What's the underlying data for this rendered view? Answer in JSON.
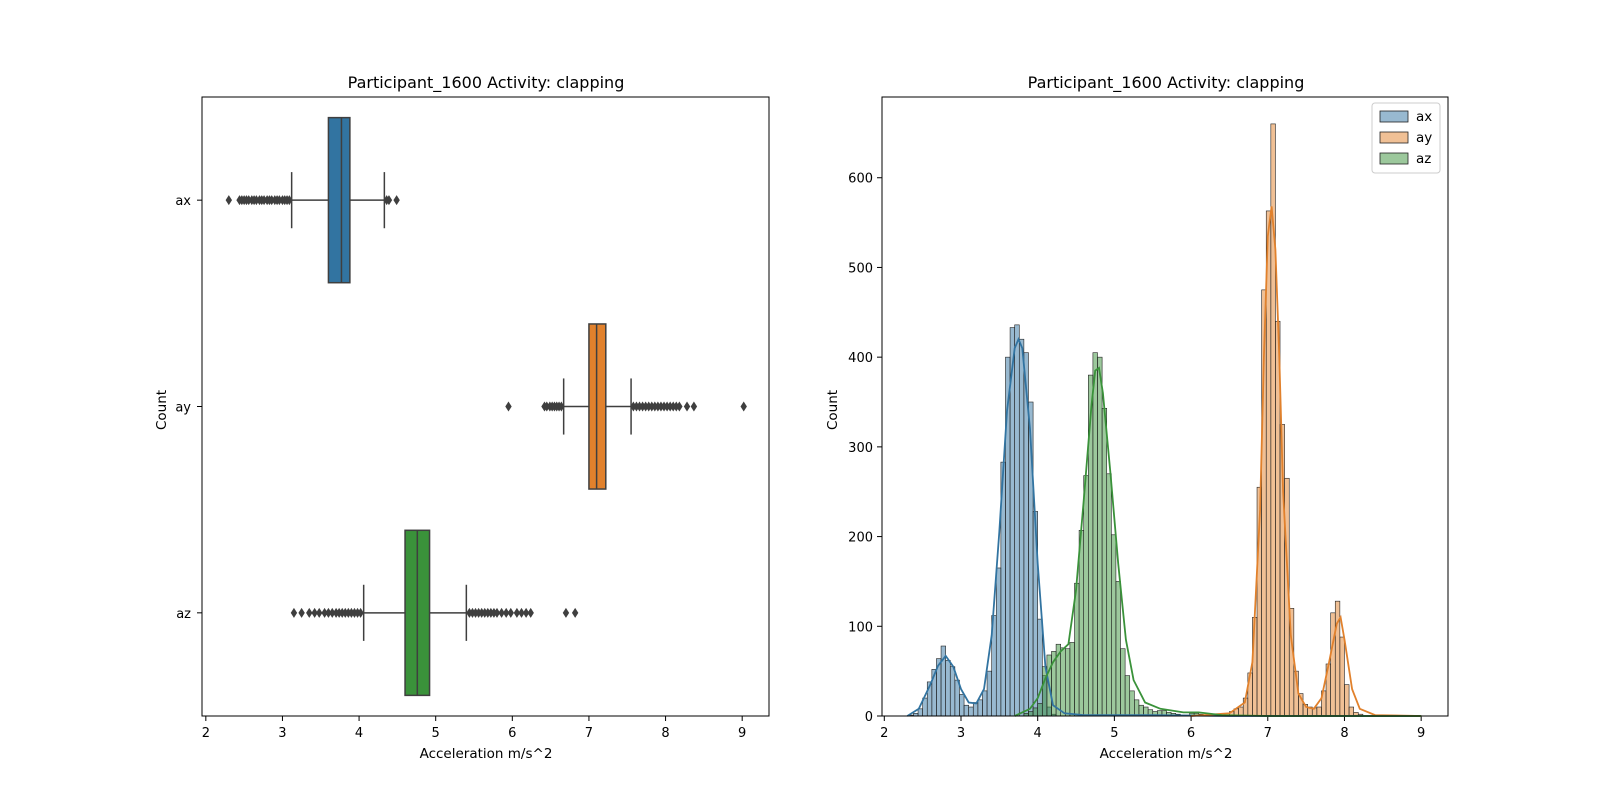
{
  "chart_data": [
    {
      "type": "boxplot",
      "title": "Participant_1600  Activity: clapping",
      "xlabel": "Acceleration m/s^2",
      "ylabel": "Count",
      "xlim": [
        1.95,
        9.35
      ],
      "xticks": [
        "2",
        "3",
        "4",
        "5",
        "6",
        "7",
        "8",
        "9"
      ],
      "categories": [
        "ax",
        "ay",
        "az"
      ],
      "colors": [
        "#3274a1",
        "#e1812c",
        "#3a923a"
      ],
      "boxes": [
        {
          "name": "ax",
          "q1": 3.6,
          "median": 3.77,
          "q3": 3.88,
          "whisker_low": 3.12,
          "whisker_high": 4.33,
          "fliers": [
            2.3,
            2.44,
            2.47,
            2.5,
            2.53,
            2.56,
            2.6,
            2.63,
            2.66,
            2.7,
            2.73,
            2.76,
            2.8,
            2.83,
            2.86,
            2.9,
            2.93,
            2.96,
            3.0,
            3.03,
            3.06,
            3.09,
            4.36,
            4.39,
            4.49
          ]
        },
        {
          "name": "ay",
          "q1": 7.0,
          "median": 7.1,
          "q3": 7.22,
          "whisker_low": 6.67,
          "whisker_high": 7.55,
          "fliers": [
            5.95,
            6.42,
            6.45,
            6.49,
            6.52,
            6.55,
            6.58,
            6.61,
            6.64,
            7.58,
            7.62,
            7.66,
            7.7,
            7.74,
            7.78,
            7.82,
            7.86,
            7.9,
            7.94,
            7.98,
            8.02,
            8.06,
            8.1,
            8.14,
            8.18,
            8.28,
            8.37,
            9.02
          ]
        },
        {
          "name": "az",
          "q1": 4.6,
          "median": 4.76,
          "q3": 4.92,
          "whisker_low": 4.06,
          "whisker_high": 5.4,
          "fliers": [
            3.15,
            3.25,
            3.35,
            3.42,
            3.48,
            3.55,
            3.6,
            3.65,
            3.7,
            3.74,
            3.78,
            3.82,
            3.86,
            3.9,
            3.94,
            3.98,
            4.02,
            5.44,
            5.48,
            5.52,
            5.56,
            5.6,
            5.64,
            5.68,
            5.72,
            5.76,
            5.8,
            5.86,
            5.92,
            5.98,
            6.06,
            6.12,
            6.18,
            6.24,
            6.7,
            6.82
          ]
        }
      ]
    },
    {
      "type": "histogram",
      "title": "Participant_1600  Activity: clapping",
      "xlabel": "Acceleration m/s^2",
      "ylabel": "Count",
      "xlim": [
        1.97,
        9.35
      ],
      "ylim": [
        0,
        690
      ],
      "xticks": [
        "2",
        "3",
        "4",
        "5",
        "6",
        "7",
        "8",
        "9"
      ],
      "yticks": [
        "0",
        "100",
        "200",
        "300",
        "400",
        "500",
        "600"
      ],
      "legend": {
        "placement": "top-right",
        "entries": [
          "ax",
          "ay",
          "az"
        ]
      },
      "series": [
        {
          "name": "ax",
          "color": "#3274a1",
          "bins": [
            [
              2.35,
              1
            ],
            [
              2.41,
              3
            ],
            [
              2.47,
              8
            ],
            [
              2.53,
              20
            ],
            [
              2.59,
              38
            ],
            [
              2.65,
              52
            ],
            [
              2.71,
              64
            ],
            [
              2.77,
              78
            ],
            [
              2.83,
              62
            ],
            [
              2.89,
              55
            ],
            [
              2.95,
              40
            ],
            [
              3.01,
              24
            ],
            [
              3.07,
              12
            ],
            [
              3.13,
              10
            ],
            [
              3.19,
              15
            ],
            [
              3.25,
              18
            ],
            [
              3.31,
              28
            ],
            [
              3.37,
              50
            ],
            [
              3.43,
              112
            ],
            [
              3.49,
              165
            ],
            [
              3.55,
              283
            ],
            [
              3.61,
              400
            ],
            [
              3.67,
              433
            ],
            [
              3.73,
              436
            ],
            [
              3.79,
              420
            ],
            [
              3.85,
              405
            ],
            [
              3.91,
              350
            ],
            [
              3.97,
              228
            ],
            [
              4.03,
              108
            ],
            [
              4.09,
              45
            ],
            [
              4.15,
              10
            ],
            [
              4.21,
              2
            ]
          ],
          "kde": [
            [
              2.3,
              0
            ],
            [
              2.45,
              8
            ],
            [
              2.6,
              35
            ],
            [
              2.7,
              56
            ],
            [
              2.8,
              67
            ],
            [
              2.9,
              55
            ],
            [
              3.0,
              30
            ],
            [
              3.1,
              15
            ],
            [
              3.2,
              14
            ],
            [
              3.3,
              30
            ],
            [
              3.4,
              90
            ],
            [
              3.5,
              205
            ],
            [
              3.6,
              340
            ],
            [
              3.7,
              410
            ],
            [
              3.75,
              420
            ],
            [
              3.8,
              410
            ],
            [
              3.9,
              320
            ],
            [
              4.0,
              170
            ],
            [
              4.1,
              55
            ],
            [
              4.2,
              12
            ],
            [
              4.35,
              3
            ],
            [
              4.6,
              1
            ],
            [
              5.5,
              1
            ],
            [
              6.5,
              0
            ],
            [
              9.0,
              0
            ]
          ]
        },
        {
          "name": "ay",
          "color": "#e1812c",
          "bins": [
            [
              6.35,
              1
            ],
            [
              6.41,
              2
            ],
            [
              6.47,
              3
            ],
            [
              6.53,
              5
            ],
            [
              6.59,
              8
            ],
            [
              6.65,
              10
            ],
            [
              6.71,
              20
            ],
            [
              6.77,
              48
            ],
            [
              6.83,
              110
            ],
            [
              6.89,
              255
            ],
            [
              6.95,
              475
            ],
            [
              7.01,
              563
            ],
            [
              7.07,
              660
            ],
            [
              7.13,
              440
            ],
            [
              7.19,
              325
            ],
            [
              7.25,
              265
            ],
            [
              7.31,
              120
            ],
            [
              7.37,
              50
            ],
            [
              7.43,
              25
            ],
            [
              7.49,
              13
            ],
            [
              7.55,
              10
            ],
            [
              7.61,
              9
            ],
            [
              7.67,
              10
            ],
            [
              7.73,
              28
            ],
            [
              7.79,
              58
            ],
            [
              7.85,
              115
            ],
            [
              7.91,
              128
            ],
            [
              7.97,
              88
            ],
            [
              8.03,
              35
            ],
            [
              8.09,
              10
            ],
            [
              8.15,
              4
            ],
            [
              8.21,
              2
            ]
          ],
          "kde": [
            [
              6.0,
              0
            ],
            [
              6.5,
              3
            ],
            [
              6.7,
              15
            ],
            [
              6.8,
              60
            ],
            [
              6.9,
              230
            ],
            [
              6.95,
              400
            ],
            [
              7.0,
              535
            ],
            [
              7.05,
              568
            ],
            [
              7.1,
              520
            ],
            [
              7.15,
              400
            ],
            [
              7.2,
              250
            ],
            [
              7.3,
              90
            ],
            [
              7.4,
              25
            ],
            [
              7.5,
              10
            ],
            [
              7.6,
              8
            ],
            [
              7.7,
              20
            ],
            [
              7.8,
              60
            ],
            [
              7.9,
              103
            ],
            [
              7.95,
              110
            ],
            [
              8.0,
              85
            ],
            [
              8.1,
              30
            ],
            [
              8.2,
              8
            ],
            [
              8.4,
              1
            ],
            [
              9.0,
              0
            ]
          ]
        },
        {
          "name": "az",
          "color": "#3a923a",
          "bins": [
            [
              3.85,
              3
            ],
            [
              3.91,
              5
            ],
            [
              3.97,
              9
            ],
            [
              4.03,
              14
            ],
            [
              4.09,
              55
            ],
            [
              4.15,
              68
            ],
            [
              4.21,
              72
            ],
            [
              4.27,
              80
            ],
            [
              4.33,
              76
            ],
            [
              4.39,
              75
            ],
            [
              4.45,
              82
            ],
            [
              4.51,
              148
            ],
            [
              4.57,
              207
            ],
            [
              4.63,
              268
            ],
            [
              4.69,
              380
            ],
            [
              4.75,
              405
            ],
            [
              4.81,
              400
            ],
            [
              4.87,
              343
            ],
            [
              4.93,
              270
            ],
            [
              4.99,
              202
            ],
            [
              5.05,
              150
            ],
            [
              5.11,
              75
            ],
            [
              5.17,
              45
            ],
            [
              5.23,
              28
            ],
            [
              5.29,
              18
            ],
            [
              5.35,
              12
            ],
            [
              5.41,
              10
            ],
            [
              5.47,
              7
            ],
            [
              5.53,
              5
            ],
            [
              5.59,
              6
            ],
            [
              5.65,
              6
            ],
            [
              5.71,
              4
            ],
            [
              5.77,
              3
            ],
            [
              5.83,
              2
            ],
            [
              5.89,
              1
            ],
            [
              5.95,
              1
            ],
            [
              6.01,
              3
            ],
            [
              6.07,
              3
            ],
            [
              6.13,
              2
            ]
          ],
          "kde": [
            [
              3.7,
              0
            ],
            [
              3.9,
              8
            ],
            [
              4.0,
              20
            ],
            [
              4.1,
              42
            ],
            [
              4.2,
              60
            ],
            [
              4.3,
              72
            ],
            [
              4.4,
              80
            ],
            [
              4.5,
              140
            ],
            [
              4.6,
              240
            ],
            [
              4.7,
              345
            ],
            [
              4.75,
              385
            ],
            [
              4.8,
              388
            ],
            [
              4.85,
              360
            ],
            [
              4.95,
              270
            ],
            [
              5.05,
              170
            ],
            [
              5.15,
              85
            ],
            [
              5.25,
              40
            ],
            [
              5.4,
              15
            ],
            [
              5.6,
              8
            ],
            [
              5.9,
              4
            ],
            [
              6.1,
              4
            ],
            [
              6.4,
              1
            ],
            [
              7.0,
              0
            ],
            [
              9.0,
              0
            ]
          ]
        }
      ]
    }
  ]
}
